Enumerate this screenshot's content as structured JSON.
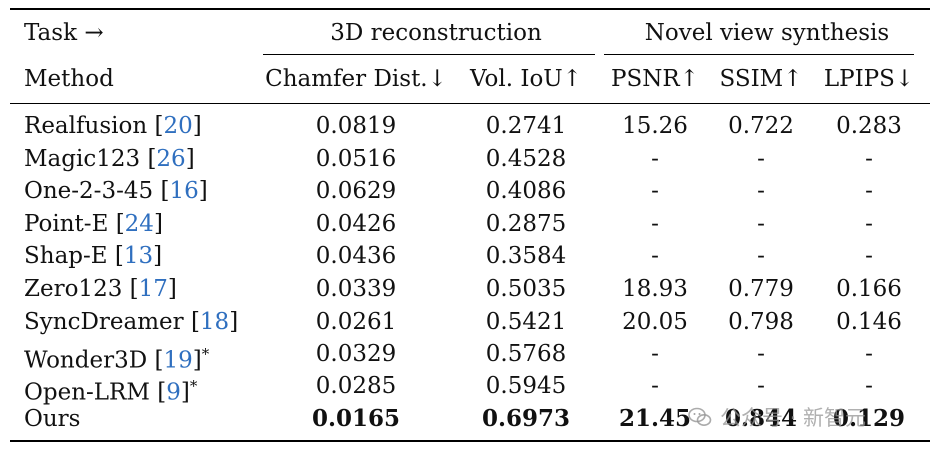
{
  "header": {
    "task_label": "Task →",
    "method_label": "Method",
    "groups": [
      "3D reconstruction",
      "Novel view synthesis"
    ],
    "columns": [
      "Chamfer Dist.↓",
      "Vol. IoU↑",
      "PSNR↑",
      "SSIM↑",
      "LPIPS↓"
    ]
  },
  "rows": [
    {
      "name": "Realfusion ",
      "cite": "20",
      "open": "[",
      "close": "]",
      "star": "",
      "values": [
        "0.0819",
        "0.2741",
        "15.26",
        "0.722",
        "0.283"
      ]
    },
    {
      "name": "Magic123 ",
      "cite": "26",
      "open": "[",
      "close": "]",
      "star": "",
      "values": [
        "0.0516",
        "0.4528",
        "-",
        "-",
        "-"
      ]
    },
    {
      "name": "One-2-3-45 ",
      "cite": "16",
      "open": "[",
      "close": "]",
      "star": "",
      "values": [
        "0.0629",
        "0.4086",
        "-",
        "-",
        "-"
      ]
    },
    {
      "name": "Point-E ",
      "cite": "24",
      "open": "[",
      "close": "]",
      "star": "",
      "values": [
        "0.0426",
        "0.2875",
        "-",
        "-",
        "-"
      ]
    },
    {
      "name": "Shap-E ",
      "cite": "13",
      "open": "[",
      "close": "]",
      "star": "",
      "values": [
        "0.0436",
        "0.3584",
        "-",
        "-",
        "-"
      ]
    },
    {
      "name": "Zero123 ",
      "cite": "17",
      "open": "[",
      "close": "]",
      "star": "",
      "values": [
        "0.0339",
        "0.5035",
        "18.93",
        "0.779",
        "0.166"
      ]
    },
    {
      "name": "SyncDreamer ",
      "cite": "18",
      "open": "[",
      "close": "]",
      "star": "",
      "values": [
        "0.0261",
        "0.5421",
        "20.05",
        "0.798",
        "0.146"
      ]
    },
    {
      "name": "Wonder3D ",
      "cite": "19",
      "open": "[",
      "close": "]",
      "star": "*",
      "values": [
        "0.0329",
        "0.5768",
        "-",
        "-",
        "-"
      ]
    },
    {
      "name": "Open-LRM ",
      "cite": "9",
      "open": "[",
      "close": "]",
      "star": "*",
      "values": [
        "0.0285",
        "0.5945",
        "-",
        "-",
        "-"
      ]
    },
    {
      "name": "Ours",
      "cite": "",
      "open": "",
      "close": "",
      "star": "",
      "values": [
        "0.0165",
        "0.6973",
        "21.45",
        "0.844",
        "0.129"
      ],
      "bold": true
    }
  ],
  "watermark": {
    "text": "公众号 · 新智元",
    "icon": "wechat-icon"
  }
}
